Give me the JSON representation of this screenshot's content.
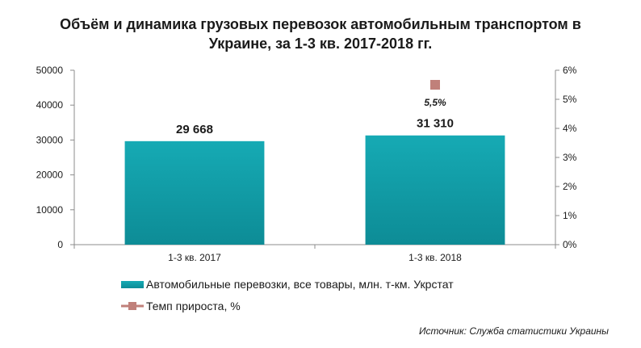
{
  "title_lines": [
    "Объём и динамика грузовых перевозок автомобильным транспортом в",
    "Украине, за 1-3 кв. 2017-2018 гг."
  ],
  "source": "Источник: Служба статистики Украины",
  "colors": {
    "bar": "#13a3ad",
    "bar_dark": "#0c8a94",
    "marker": "#c0807a"
  },
  "chart_data": {
    "type": "bar",
    "categories": [
      "1-3 кв. 2017",
      "1-3 кв. 2018"
    ],
    "series": [
      {
        "name": "Автомобильные  перевозки, все товары, млн. т-км. Укрстат",
        "type": "bar",
        "axis": "left",
        "values": [
          29668,
          31310
        ],
        "labels": [
          "29 668",
          "31 310"
        ]
      },
      {
        "name": "Темп прироста, %",
        "type": "line-marker",
        "axis": "right",
        "values": [
          null,
          5.5
        ],
        "labels": [
          "",
          "5,5%"
        ]
      }
    ],
    "ylim": [
      0,
      50000
    ],
    "yticks": [
      "0",
      "10000",
      "20000",
      "30000",
      "40000",
      "50000"
    ],
    "y2lim": [
      0,
      6
    ],
    "y2ticks": [
      "0%",
      "1%",
      "2%",
      "3%",
      "4%",
      "5%",
      "6%"
    ],
    "grid": false,
    "legend_position": "bottom"
  }
}
